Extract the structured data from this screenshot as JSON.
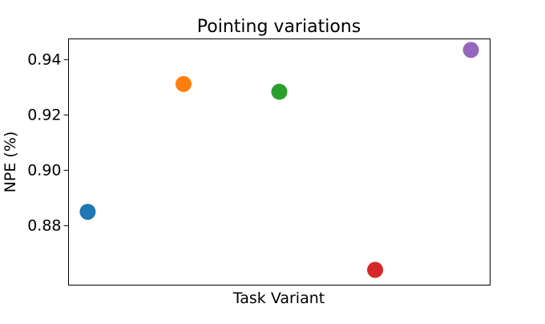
{
  "chart_data": {
    "type": "scatter",
    "title": "Pointing variations",
    "xlabel": "Task Variant",
    "ylabel": "NPE (%)",
    "ylim": [
      0.8585,
      0.9475
    ],
    "xlim": [
      -0.2,
      4.2
    ],
    "x_ticks_visible": false,
    "yticks": [
      0.88,
      0.9,
      0.92,
      0.94
    ],
    "ytick_labels": [
      "0.88",
      "0.90",
      "0.92",
      "0.94"
    ],
    "grid": false,
    "legend": "none",
    "points": [
      {
        "x": 0,
        "y": 0.885,
        "color": "#1f77b4"
      },
      {
        "x": 1,
        "y": 0.9312,
        "color": "#ff7f0e"
      },
      {
        "x": 2,
        "y": 0.9284,
        "color": "#2ca02c"
      },
      {
        "x": 3,
        "y": 0.864,
        "color": "#d62728"
      },
      {
        "x": 4,
        "y": 0.9435,
        "color": "#9467bd"
      }
    ]
  }
}
